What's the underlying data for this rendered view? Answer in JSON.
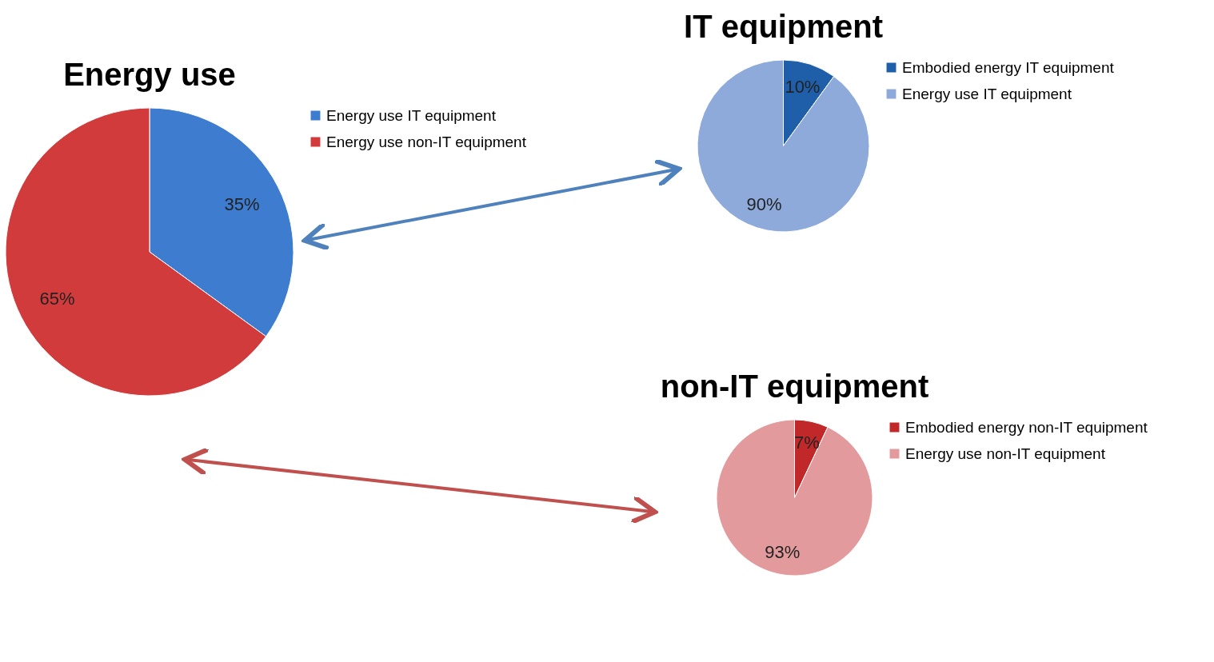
{
  "chart_data": [
    {
      "type": "pie",
      "title": "Energy use",
      "categories": [
        "Energy use IT equipment",
        "Energy use non-IT equipment"
      ],
      "values": [
        35,
        65
      ],
      "value_labels": [
        "35%",
        "65%"
      ],
      "colors": [
        "#3d7ccf",
        "#d23b3b"
      ],
      "legend": "right"
    },
    {
      "type": "pie",
      "title": "IT equipment",
      "categories": [
        "Embodied energy IT equipment",
        "Energy use IT equipment"
      ],
      "values": [
        10,
        90
      ],
      "value_labels": [
        "10%",
        "90%"
      ],
      "colors": [
        "#1f5ea8",
        "#8eaadb"
      ],
      "legend": "right"
    },
    {
      "type": "pie",
      "title": "non-IT equipment",
      "categories": [
        "Embodied energy non-IT equipment",
        "Energy use non-IT equipment"
      ],
      "values": [
        7,
        93
      ],
      "value_labels": [
        "7%",
        "93%"
      ],
      "colors": [
        "#c0282a",
        "#e39a9c"
      ],
      "legend": "right"
    }
  ]
}
